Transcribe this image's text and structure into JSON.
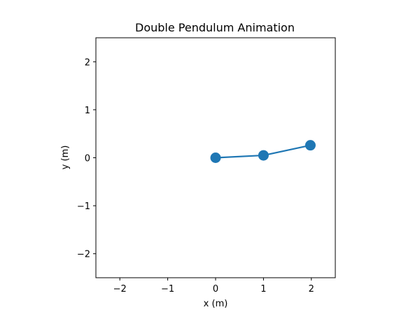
{
  "chart_data": {
    "type": "line",
    "title": "Double Pendulum Animation",
    "xlabel": "x (m)",
    "ylabel": "y (m)",
    "xlim": [
      -2.5,
      2.5
    ],
    "ylim": [
      -2.5,
      2.5
    ],
    "x_ticks": [
      -2,
      -1,
      0,
      1,
      2
    ],
    "y_ticks": [
      -2,
      -1,
      0,
      1,
      2
    ],
    "x_tick_labels": [
      "−2",
      "−1",
      "0",
      "1",
      "2"
    ],
    "y_tick_labels": [
      "−2",
      "−1",
      "0",
      "1",
      "2"
    ],
    "grid": false,
    "legend": "none",
    "series": [
      {
        "x": [
          0,
          1.0,
          1.98
        ],
        "y": [
          0,
          0.05,
          0.26
        ],
        "color": "#1f77b4",
        "marker": "circle"
      }
    ]
  }
}
